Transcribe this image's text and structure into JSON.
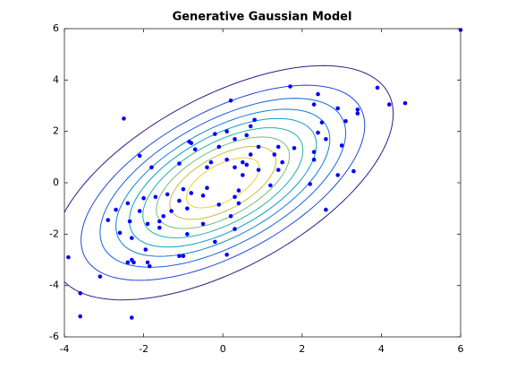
{
  "chart_data": {
    "type": "scatter",
    "title": "Generative Gaussian Model",
    "x": [
      6,
      -2.5,
      -2.1,
      0.2,
      1.7,
      2.4,
      3.9,
      4.2,
      4.6,
      3.4,
      3.4,
      2.9,
      3.1,
      2.3,
      2.5,
      2.4,
      2.6,
      2.3,
      2.3,
      3.0,
      3.3,
      2.9,
      2.2,
      2.6,
      1.8,
      1.4,
      1.5,
      1.4,
      1.3,
      0.9,
      0.7,
      0.7,
      0.8,
      0.6,
      0.3,
      0.1,
      -0.2,
      -0.1,
      -0.8,
      -0.85,
      -0.7,
      -1.8,
      -1.1,
      -0.4,
      0.1,
      -0.3,
      0.3,
      0.5,
      0.6,
      0.9,
      0.5,
      1.2,
      0.4,
      0.3,
      0.4,
      0.2,
      0.3,
      -0.1,
      -0.5,
      -0.4,
      -0.8,
      -1.1,
      -1.0,
      -0.9,
      -1.4,
      -1.7,
      -1.3,
      -1.5,
      -1.6,
      -2.0,
      -2.1,
      -2.4,
      -2.7,
      -2.9,
      -2.35,
      -1.9,
      -2.6,
      -2.3,
      -1.95,
      -1.6,
      -0.9,
      -0.5,
      -0.2,
      -2.3,
      -2.25,
      -2.4,
      -1.9,
      -1.85,
      -1.1,
      -1.0,
      0.1,
      -3.1,
      -3.6,
      -3.6,
      -2.3,
      -3.9
    ],
    "values": [
      5.95,
      2.5,
      1.05,
      3.2,
      3.75,
      3.45,
      3.7,
      3.05,
      3.1,
      2.85,
      2.7,
      2.9,
      2.4,
      3.05,
      2.35,
      1.95,
      1.7,
      1.2,
      0.9,
      1.45,
      0.45,
      0.3,
      -0.05,
      -1.05,
      1.35,
      1.4,
      0.8,
      0.5,
      1.1,
      1.4,
      1.1,
      2.2,
      2.45,
      1.85,
      1.7,
      2.0,
      1.9,
      1.4,
      1.55,
      1.6,
      1.3,
      0.6,
      0.75,
      0.6,
      0.9,
      0.8,
      0.6,
      0.8,
      0.7,
      0.5,
      0.3,
      -0.1,
      -0.3,
      -0.55,
      -0.8,
      -1.3,
      -1.8,
      -0.85,
      -0.5,
      -0.2,
      -0.4,
      -0.7,
      -0.25,
      -1.0,
      -0.45,
      -0.55,
      -1.1,
      -1.3,
      -1.5,
      -0.6,
      -1.1,
      -0.8,
      -1.05,
      -1.45,
      -1.5,
      -1.6,
      -1.95,
      -2.15,
      -2.6,
      -1.75,
      -2.0,
      -1.6,
      -2.3,
      -3.0,
      -3.1,
      -3.1,
      -3.1,
      -3.25,
      -2.85,
      -2.85,
      -2.8,
      -3.65,
      -4.3,
      -5.2,
      -5.25,
      -2.9
    ],
    "color": "#0000ff",
    "contours": {
      "mean": [
        0,
        0
      ],
      "cov": [
        [
          4,
          2.5
        ],
        [
          2.5,
          4.5
        ]
      ],
      "levels": [
        2.15,
        1.79,
        1.55,
        1.35,
        1.18,
        1.01,
        0.84,
        0.67,
        0.46
      ],
      "colors": [
        "#2a1e8c",
        "#1f48d6",
        "#1462e0",
        "#0f7fd8",
        "#0e9ec8",
        "#22b2a6",
        "#79bd70",
        "#c9bc45",
        "#f0cf36"
      ]
    },
    "xlim": [
      -4,
      6
    ],
    "ylim": [
      -6,
      6
    ],
    "xticks": [
      -4,
      -2,
      0,
      2,
      4,
      6
    ],
    "yticks": [
      -6,
      -4,
      -2,
      0,
      2,
      4,
      6
    ]
  }
}
